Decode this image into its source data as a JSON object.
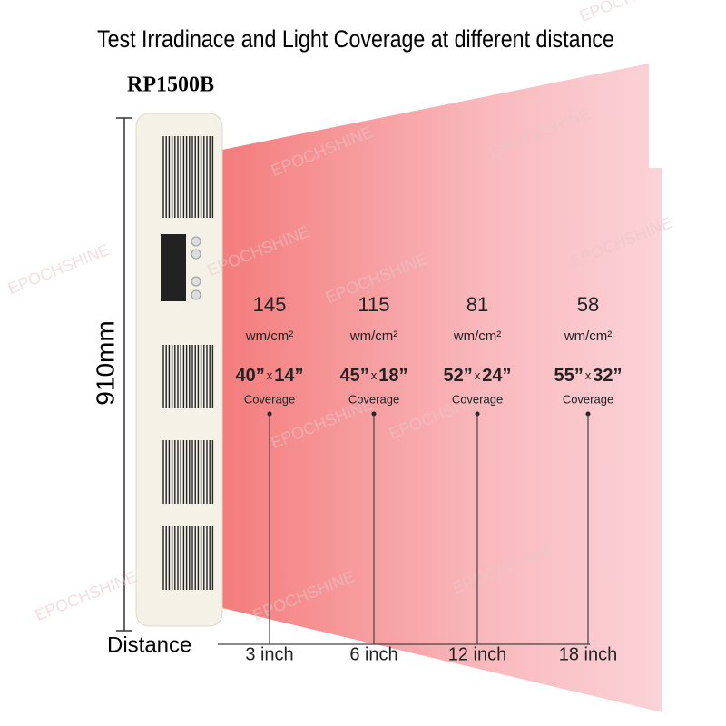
{
  "title": "Test Irradinace and Light Coverage at different distance",
  "model": "RP1500B",
  "height_label": "910mm",
  "watermark": "EPOCHSHINE",
  "distance_label": "Distance",
  "columns": [
    {
      "irradiance": 145,
      "unit": "wm/cm²",
      "width": "40”",
      "by": "x",
      "height": "14”",
      "coverage": "Coverage",
      "distance": "3 inch"
    },
    {
      "irradiance": 115,
      "unit": "wm/cm²",
      "width": "45”",
      "by": "x",
      "height": "18”",
      "coverage": "Coverage",
      "distance": "6 inch"
    },
    {
      "irradiance": 81,
      "unit": "wm/cm²",
      "width": "52”",
      "by": "x",
      "height": "24”",
      "coverage": "Coverage",
      "distance": "12 inch"
    },
    {
      "irradiance": 58,
      "unit": "wm/cm²",
      "width": "55”",
      "by": "x",
      "height": "32”",
      "coverage": "Coverage",
      "distance": "18 inch"
    }
  ]
}
